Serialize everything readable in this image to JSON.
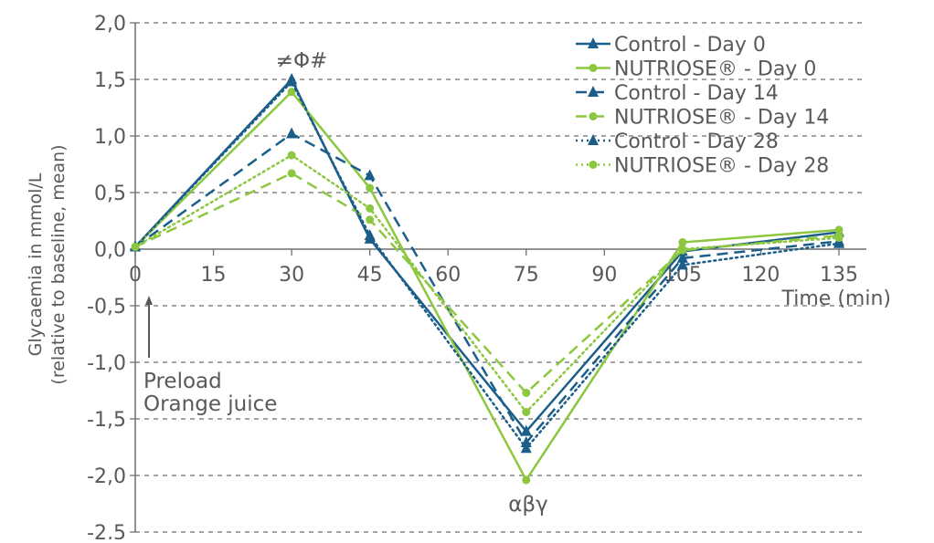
{
  "chart_data": {
    "type": "line",
    "xlabel": "Time (min)",
    "ylabel_lines": [
      "Glycaemia in mmol/L",
      "(relative to baseline, mean)"
    ],
    "x": [
      0,
      30,
      45,
      75,
      105,
      135
    ],
    "xticks": [
      "0",
      "15",
      "30",
      "45",
      "60",
      "75",
      "90",
      "105",
      "120",
      "135"
    ],
    "xtick_values": [
      0,
      15,
      30,
      45,
      60,
      75,
      90,
      105,
      120,
      135
    ],
    "yticks": [
      "2,0",
      "1,5",
      "1,0",
      "0,5",
      "0,0",
      "-0,5",
      "-1,0",
      "-1,5",
      "-2,0",
      "-2,5"
    ],
    "ytick_values": [
      2.0,
      1.5,
      1.0,
      0.5,
      0.0,
      -0.5,
      -1.0,
      -1.5,
      -2.0,
      -2.5
    ],
    "xlim": [
      0,
      135
    ],
    "ylim": [
      -2.5,
      2.0
    ],
    "grid": "horizontal dashed",
    "legend_placement": "top-right",
    "colors": {
      "control": "#1b5e8a",
      "nutriose": "#8dc63f"
    },
    "series": [
      {
        "name": "Control - Day 0",
        "color": "#1b5e8a",
        "style": "solid",
        "marker": "triangle",
        "values": [
          0.02,
          1.5,
          0.09,
          -1.61,
          -0.02,
          0.15
        ]
      },
      {
        "name": "NUTRIOSE® - Day 0",
        "color": "#8dc63f",
        "style": "solid",
        "marker": "circle",
        "values": [
          0.02,
          1.39,
          0.54,
          -2.04,
          0.06,
          0.17
        ]
      },
      {
        "name": "Control - Day 14",
        "color": "#1b5e8a",
        "style": "dashed",
        "marker": "triangle",
        "values": [
          0.02,
          1.02,
          0.65,
          -1.71,
          -0.08,
          0.07
        ]
      },
      {
        "name": "NUTRIOSE® - Day 14",
        "color": "#8dc63f",
        "style": "dashed",
        "marker": "circle",
        "values": [
          0.02,
          0.67,
          0.26,
          -1.27,
          -0.01,
          0.12
        ]
      },
      {
        "name": "Control - Day 28",
        "color": "#1b5e8a",
        "style": "dotted",
        "marker": "triangle",
        "values": [
          0.02,
          1.48,
          0.12,
          -1.76,
          -0.14,
          0.05
        ]
      },
      {
        "name": "NUTRIOSE® - Day 28",
        "color": "#8dc63f",
        "style": "dotted",
        "marker": "circle",
        "values": [
          0.02,
          0.83,
          0.36,
          -1.44,
          0.0,
          0.1
        ]
      }
    ],
    "annotations": [
      {
        "text": "≠Φ#",
        "x": 30,
        "y": 1.5
      },
      {
        "text": "αβγ",
        "x": 75,
        "y": -2.04
      },
      {
        "text": "Preload",
        "x": 3,
        "y": -1.15
      },
      {
        "text": "Orange juice",
        "x": 3,
        "y": -1.35
      }
    ]
  }
}
